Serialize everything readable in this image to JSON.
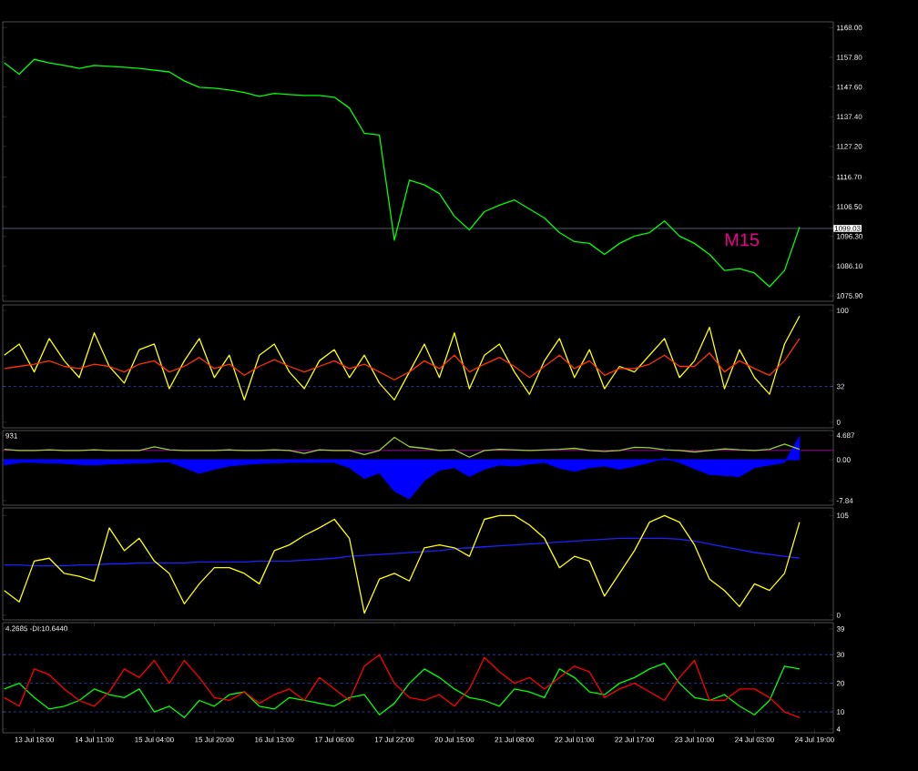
{
  "chart_data": [
    {
      "type": "line",
      "series": [
        {
          "color": "#00ff00",
          "values": [
            1155.9,
            1152,
            1157.1,
            1155.9,
            1155,
            1154,
            1155,
            1154.7,
            1154.4,
            1154,
            1153.4,
            1152.8,
            1149.7,
            1147.5,
            1147.2,
            1146.6,
            1145.7,
            1144.4,
            1145.4,
            1145,
            1144.7,
            1144.7,
            1144.1,
            1140.4,
            1131.7,
            1131.1,
            1095,
            1115.6,
            1114,
            1111,
            1103.2,
            1098.5,
            1104.8,
            1107,
            1108.8,
            1105.7,
            1102.6,
            1097.6,
            1094.5,
            1093.9,
            1090.1,
            1093.9,
            1096.4,
            1097.6,
            1101.6,
            1096.4,
            1093.9,
            1090.1,
            1084.6,
            1085.2,
            1083.7,
            1079,
            1084.6,
            1099.5,
            null,
            null
          ]
        }
      ],
      "ylim": [
        1074,
        1170
      ],
      "yticks": [
        {
          "value": 1075.9,
          "label": "1075.90"
        },
        {
          "value": 1086.1,
          "label": "1086.10"
        },
        {
          "value": 1096.3,
          "label": "1096.30"
        },
        {
          "value": 1106.5,
          "label": "1106.50"
        },
        {
          "value": 1116.7,
          "label": "1116.70"
        },
        {
          "value": 1127.2,
          "label": "1127.20"
        },
        {
          "value": 1137.4,
          "label": "1137.40"
        },
        {
          "value": 1147.6,
          "label": "1147.60"
        },
        {
          "value": 1157.8,
          "label": "1157.80"
        },
        {
          "value": 1168,
          "label": "1168.00"
        }
      ],
      "tick_labels": "y",
      "ref_lines": [
        {
          "axis": "y",
          "value": 1099.03,
          "label": "1099.03",
          "color": "#8ca0b4"
        }
      ],
      "annotations": [
        "M15"
      ]
    },
    {
      "type": "line",
      "series": [
        {
          "color": "#ffff00",
          "values": [
            60,
            70,
            45,
            75,
            55,
            40,
            80,
            50,
            35,
            65,
            70,
            30,
            55,
            75,
            40,
            60,
            20,
            60,
            70,
            45,
            30,
            55,
            65,
            40,
            60,
            35,
            20,
            45,
            70,
            40,
            80,
            30,
            60,
            70,
            45,
            25,
            55,
            75,
            40,
            65,
            30,
            50,
            45,
            60,
            75,
            40,
            55,
            85,
            30,
            65,
            40,
            25,
            70,
            95,
            null,
            null
          ]
        },
        {
          "color": "#ff3300",
          "values": [
            48,
            50,
            52,
            55,
            50,
            48,
            52,
            50,
            45,
            52,
            55,
            45,
            50,
            58,
            48,
            52,
            42,
            50,
            56,
            50,
            45,
            50,
            55,
            48,
            52,
            45,
            38,
            45,
            55,
            48,
            60,
            45,
            52,
            58,
            50,
            40,
            50,
            60,
            48,
            55,
            42,
            48,
            48,
            52,
            60,
            50,
            50,
            62,
            45,
            55,
            48,
            42,
            55,
            75,
            null,
            null
          ]
        }
      ],
      "ylim": [
        -5,
        105
      ],
      "yticks": [
        0,
        32,
        100
      ],
      "tick_labels": "y",
      "ref_lines": [
        {
          "axis": "y",
          "value": 32,
          "color": "#4060ff",
          "line_style": "dashed"
        }
      ]
    },
    {
      "type": "line",
      "series": [
        {
          "type": "area",
          "color": "#0000ff",
          "values": [
            -1.0,
            -0.5,
            -0.5,
            -0.6,
            -0.7,
            -0.9,
            -1.0,
            -0.8,
            -0.7,
            -0.6,
            -0.5,
            -0.4,
            -1.5,
            -2.6,
            -1.8,
            -1.2,
            -0.9,
            -0.7,
            -0.6,
            -0.5,
            -0.5,
            -0.5,
            -0.5,
            -1.5,
            -3.6,
            -2.5,
            -6,
            -7.5,
            -4.0,
            -2,
            -1.5,
            -3.2,
            -1.8,
            -1,
            -1.2,
            -0.8,
            -0.5,
            -1.6,
            -2.2,
            -1.5,
            -1.2,
            -1.8,
            -1.2,
            -0.5,
            0.3,
            -0.5,
            -1.7,
            -2.8,
            -3,
            -3.2,
            -1.5,
            -1,
            -0.5,
            4.5,
            null,
            null
          ]
        },
        {
          "color": "#9acd32",
          "values": [
            2,
            1.8,
            1.8,
            1.9,
            1.8,
            1.8,
            1.9,
            1.8,
            1.8,
            1.8,
            2.5,
            1.9,
            1.8,
            1.8,
            1.8,
            1.9,
            1.8,
            1.8,
            1.9,
            1.8,
            1.2,
            1.9,
            1.8,
            1.8,
            1.0,
            1.8,
            4.3,
            2.5,
            2.2,
            1.8,
            1.9,
            0.5,
            1.8,
            2,
            1.9,
            1.8,
            1.9,
            2,
            2.2,
            1.8,
            1.6,
            1.8,
            2.4,
            2.3,
            1.9,
            1.8,
            1.5,
            1.8,
            2.1,
            1.9,
            1.8,
            2,
            3,
            2,
            null,
            null
          ]
        }
      ],
      "ylim": [
        -8.7,
        5.6
      ],
      "yticks": [
        -7.84,
        {
          "value": 0,
          "label": "0.00"
        },
        4.687
      ],
      "tick_labels": "y",
      "ref_lines": [
        {
          "axis": "y",
          "value": 1.8,
          "color": "#ff00ff"
        }
      ],
      "annotations": [
        "931"
      ]
    },
    {
      "type": "line",
      "series": [
        {
          "color": "#2020ff",
          "values": [
            53,
            53,
            52,
            52,
            52,
            53,
            53,
            54,
            54,
            55,
            55,
            55,
            55,
            56,
            56,
            56,
            56,
            57,
            57,
            57,
            58,
            59,
            60,
            62,
            63,
            64,
            65,
            66,
            67,
            68,
            70,
            71,
            72,
            73,
            74,
            75,
            76,
            77,
            78,
            79,
            80,
            81,
            81,
            81,
            81,
            80,
            78,
            75,
            72,
            69,
            66,
            64,
            62,
            60,
            null,
            null
          ]
        },
        {
          "color": "#ffff00",
          "values": [
            26,
            14,
            57,
            60,
            44,
            41,
            36,
            92,
            68,
            81,
            57,
            44,
            12,
            33,
            50,
            50,
            44,
            33,
            68,
            74,
            84,
            92,
            101,
            81,
            2,
            38,
            44,
            36,
            71,
            74,
            71,
            62,
            101,
            105,
            105,
            95,
            81,
            50,
            62,
            57,
            20,
            44,
            68,
            98,
            105,
            98,
            74,
            38,
            26,
            9,
            33,
            26,
            44,
            98,
            null,
            null
          ]
        }
      ],
      "ylim": [
        -5,
        113
      ],
      "yticks": [
        0,
        105
      ],
      "tick_labels": "y"
    },
    {
      "type": "line",
      "categories": [
        null,
        null,
        "13 Jul 18:00",
        null,
        null,
        null,
        "14 Jul 11:00",
        null,
        null,
        null,
        "15 Jul 04:00",
        null,
        null,
        null,
        "15 Jul 20:00",
        null,
        null,
        null,
        "16 Jul 13:00",
        null,
        null,
        null,
        "17 Jul 06:00",
        null,
        null,
        null,
        "17 Jul 22:00",
        null,
        null,
        null,
        "20 Jul 15:00",
        null,
        null,
        null,
        "21 Jul 08:00",
        null,
        null,
        null,
        "22 Jul 01:00",
        null,
        null,
        null,
        "22 Jul 17:00",
        null,
        null,
        null,
        "23 Jul 10:00",
        null,
        null,
        null,
        "24 Jul 03:00",
        null,
        null,
        null,
        "24 Jul 19:00",
        null
      ],
      "series": [
        {
          "color": "#00ff00",
          "values": [
            18,
            20,
            15,
            11,
            12,
            14,
            18,
            16,
            15,
            18,
            10,
            12,
            8,
            14,
            12,
            16,
            17,
            12,
            11,
            15,
            14,
            13,
            12,
            15,
            16,
            9,
            13,
            20,
            25,
            22,
            18,
            15,
            14,
            12,
            18,
            17,
            15,
            25,
            22,
            17,
            16,
            20,
            22,
            25,
            27,
            20,
            15,
            14,
            16,
            12,
            9,
            14,
            26,
            25,
            null,
            null
          ]
        },
        {
          "color": "#ff0000",
          "values": [
            15,
            12,
            25,
            23,
            18,
            14,
            12,
            17,
            25,
            22,
            28,
            20,
            28,
            22,
            15,
            14,
            17,
            13,
            16,
            18,
            14,
            22,
            18,
            14,
            26,
            30,
            20,
            15,
            14,
            16,
            12,
            18,
            29,
            24,
            20,
            22,
            18,
            22,
            26,
            24,
            15,
            18,
            20,
            17,
            14,
            22,
            28,
            14,
            14,
            18,
            18,
            15,
            10,
            8,
            null,
            null
          ]
        }
      ],
      "ylim": [
        2.7,
        41.2
      ],
      "yticks": [
        4,
        10,
        20,
        30,
        39
      ],
      "ref_lines": [
        {
          "axis": "y",
          "value": 10,
          "color": "#4060ff",
          "line_style": "dashed"
        },
        {
          "axis": "y",
          "value": 20,
          "color": "#4060ff",
          "line_style": "dashed"
        },
        {
          "axis": "y",
          "value": 30,
          "color": "#4060ff",
          "line_style": "dashed"
        }
      ],
      "annotations": [
        "4.2685 -DI:10.6440"
      ]
    }
  ]
}
